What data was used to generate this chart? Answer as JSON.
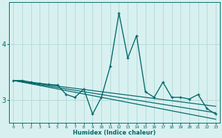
{
  "xlabel": "Humidex (Indice chaleur)",
  "bg_color": "#d8f0f0",
  "grid_color": "#b8dada",
  "line_color": "#006868",
  "x_values": [
    0,
    1,
    2,
    3,
    4,
    5,
    6,
    7,
    8,
    9,
    10,
    11,
    12,
    13,
    14,
    15,
    16,
    17,
    18,
    19,
    20,
    21,
    22,
    23
  ],
  "series1": [
    3.35,
    3.35,
    3.32,
    3.3,
    3.28,
    3.27,
    3.1,
    3.05,
    3.2,
    2.75,
    3.05,
    3.6,
    4.55,
    3.75,
    4.15,
    3.15,
    3.05,
    3.32,
    3.05,
    3.05,
    3.02,
    3.1,
    2.85,
    2.75
  ],
  "trend1": [
    3.35,
    3.32,
    3.29,
    3.26,
    3.23,
    3.2,
    3.17,
    3.14,
    3.11,
    3.08,
    3.05,
    3.02,
    2.99,
    2.96,
    2.93,
    2.9,
    2.87,
    2.84,
    2.81,
    2.78,
    2.75,
    2.72,
    2.69,
    2.66
  ],
  "trend2": [
    3.35,
    3.325,
    3.3,
    3.275,
    3.25,
    3.225,
    3.2,
    3.175,
    3.15,
    3.125,
    3.1,
    3.075,
    3.05,
    3.025,
    3.0,
    2.975,
    2.95,
    2.925,
    2.9,
    2.875,
    2.85,
    2.825,
    2.8,
    2.775
  ],
  "trend3": [
    3.35,
    3.33,
    3.31,
    3.29,
    3.27,
    3.25,
    3.23,
    3.21,
    3.19,
    3.17,
    3.15,
    3.13,
    3.11,
    3.09,
    3.07,
    3.05,
    3.03,
    3.01,
    2.99,
    2.97,
    2.95,
    2.93,
    2.91,
    2.89
  ],
  "ylim": [
    2.6,
    4.75
  ],
  "xlim": [
    -0.5,
    23.5
  ],
  "yticks": [
    3.0,
    4.0
  ],
  "xticks": [
    0,
    1,
    2,
    3,
    4,
    5,
    6,
    7,
    8,
    9,
    10,
    11,
    12,
    13,
    14,
    15,
    16,
    17,
    18,
    19,
    20,
    21,
    22,
    23
  ]
}
